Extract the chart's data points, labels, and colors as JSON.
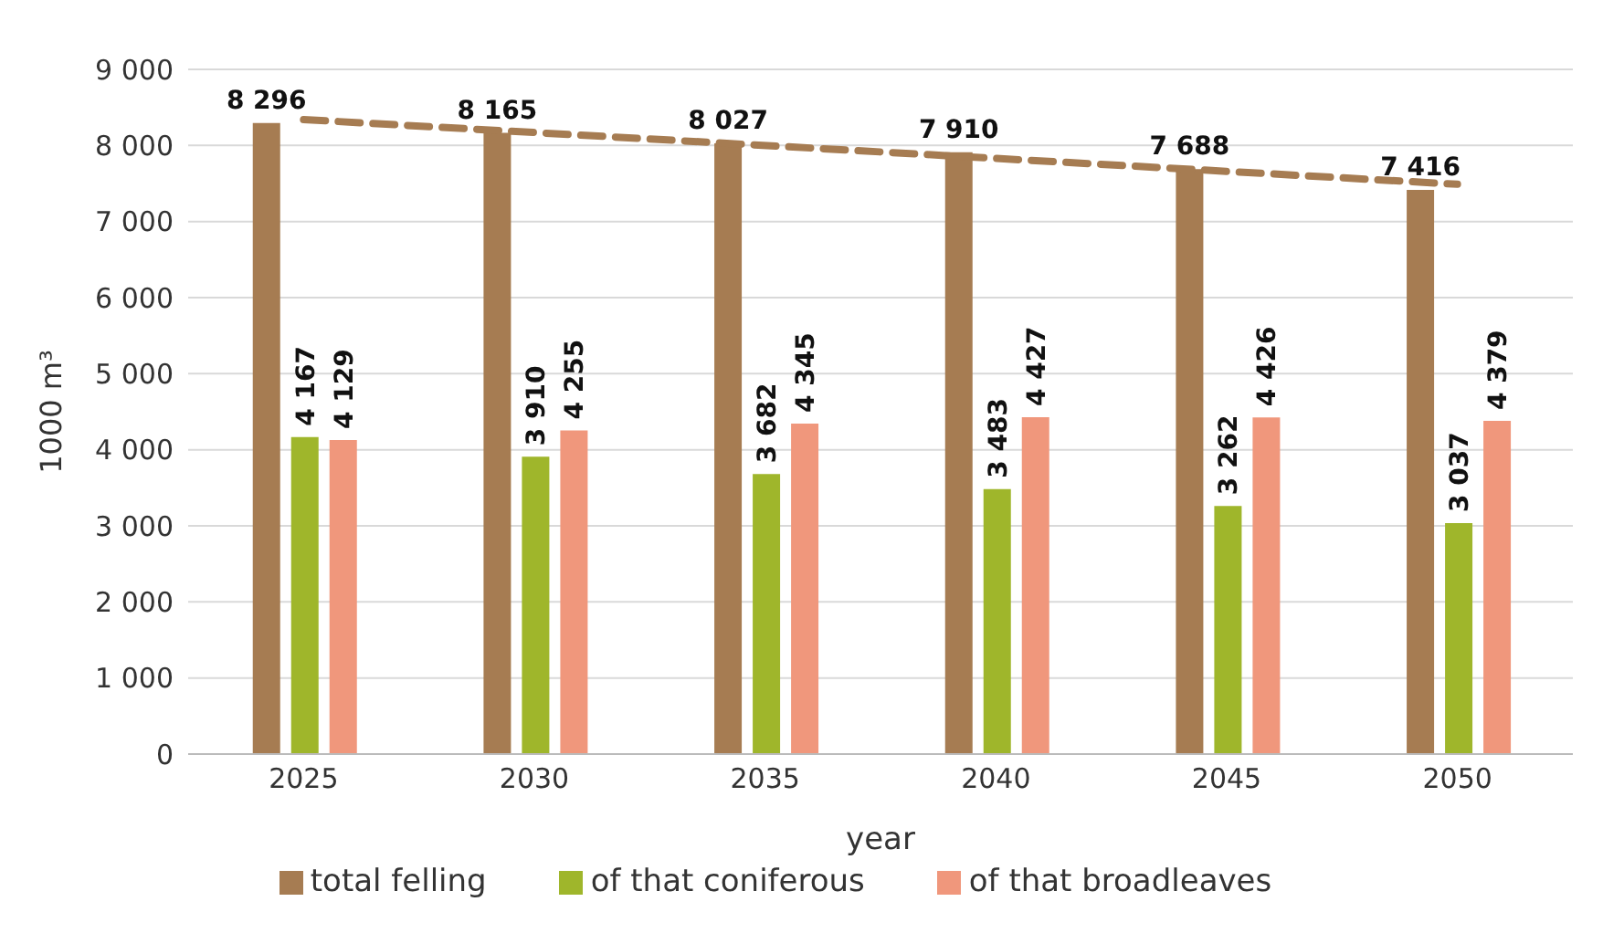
{
  "chart_data": {
    "type": "bar",
    "xlabel": "year",
    "ylabel": "1000 m³",
    "categories": [
      "2025",
      "2030",
      "2035",
      "2040",
      "2045",
      "2050"
    ],
    "series": [
      {
        "name": "total felling",
        "color": "#a67c52",
        "values": [
          8296,
          8165,
          8027,
          7910,
          7688,
          7416
        ],
        "value_labels": [
          "8 296",
          "8 165",
          "8 027",
          "7 910",
          "7 688",
          "7 416"
        ]
      },
      {
        "name": "of that coniferous",
        "color": "#9fb62b",
        "values": [
          4167,
          3910,
          3682,
          3483,
          3262,
          3037
        ],
        "value_labels": [
          "4 167",
          "3 910",
          "3 682",
          "3 483",
          "3 262",
          "3 037"
        ]
      },
      {
        "name": "of that broadleaves",
        "color": "#f0977c",
        "values": [
          4129,
          4255,
          4345,
          4427,
          4426,
          4379
        ],
        "value_labels": [
          "4 129",
          "4 255",
          "4 345",
          "4 427",
          "4 426",
          "4 379"
        ]
      },
      {
        "type": "line",
        "color": "#a67c52",
        "line_style": "dashed",
        "marker": "none",
        "values": [
          8340,
          null,
          null,
          null,
          null,
          7490
        ]
      }
    ],
    "ylim": [
      0,
      9000
    ],
    "yticks": [
      0,
      1000,
      2000,
      3000,
      4000,
      5000,
      6000,
      7000,
      8000,
      9000
    ],
    "grid": "y",
    "legend": "bottom"
  }
}
